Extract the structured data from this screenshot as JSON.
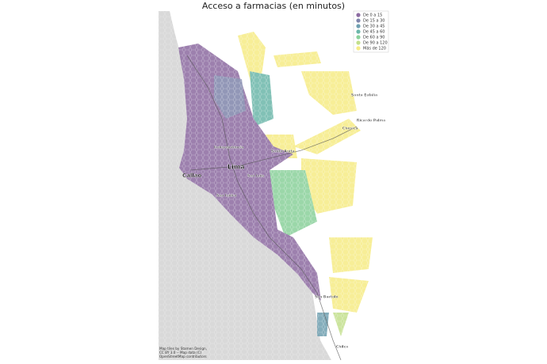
{
  "title": "Acceso a farmacias (en minutos)",
  "legend": {
    "items": [
      {
        "label": "De 0 a 15",
        "color": "#8c6ba1"
      },
      {
        "label": "De 15 a 30",
        "color": "#7f86ab"
      },
      {
        "label": "De 30 a 45",
        "color": "#6f9fb0"
      },
      {
        "label": "De 45 a 60",
        "color": "#6cb7aa"
      },
      {
        "label": "De 60 a 90",
        "color": "#8ad19b"
      },
      {
        "label": "De 90 a 120",
        "color": "#c3e08c"
      },
      {
        "label": "Más de 120",
        "color": "#f6ec86"
      }
    ]
  },
  "places": [
    {
      "label": "Santa Eulalia"
    },
    {
      "label": "Ricardo Palma"
    },
    {
      "label": "Chosica"
    },
    {
      "label": "Independencia"
    },
    {
      "label": "Santa Anita"
    },
    {
      "label": "Lima"
    },
    {
      "label": "Callao"
    },
    {
      "label": "San Luis"
    },
    {
      "label": "San Isidro"
    },
    {
      "label": "San Bartolo"
    },
    {
      "label": "Chilca"
    }
  ],
  "attribution": [
    "Map tiles by Stamen Design,",
    "CC BY 3.0 -- Map data (C)",
    "OpenStreetMap contributors"
  ]
}
